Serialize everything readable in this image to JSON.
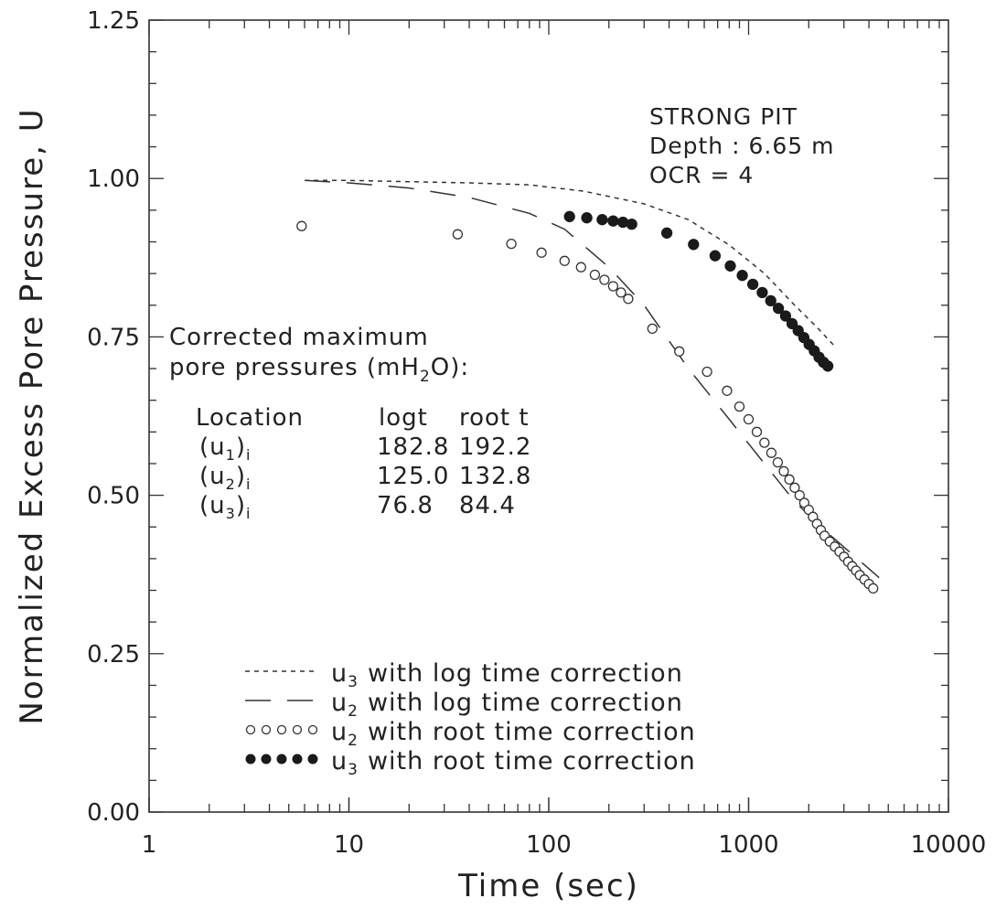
{
  "chart_data": {
    "type": "scatter",
    "title": "",
    "xlabel": "Time (sec)",
    "ylabel": "Normalized Excess Pore Pressure, U",
    "xscale": "log",
    "xlim": [
      1,
      10000
    ],
    "ylim": [
      0,
      1.25
    ],
    "x_ticks": [
      {
        "value": 1,
        "label": "1"
      },
      {
        "value": 10,
        "label": "10"
      },
      {
        "value": 100,
        "label": "100"
      },
      {
        "value": 1000,
        "label": "1000"
      },
      {
        "value": 10000,
        "label": "10000"
      }
    ],
    "y_ticks": [
      {
        "value": 0,
        "label": "0.00"
      },
      {
        "value": 0.25,
        "label": "0.25"
      },
      {
        "value": 0.5,
        "label": "0.50"
      },
      {
        "value": 0.75,
        "label": "0.75"
      },
      {
        "value": 1.0,
        "label": "1.00"
      },
      {
        "value": 1.25,
        "label": "1.25"
      }
    ],
    "annotations": {
      "site": "STRONG PIT",
      "depth": "Depth : 6.65 m",
      "ocr": "OCR = 4"
    },
    "corrected_table": {
      "title_line1": "Corrected maximum",
      "title_line2": "pore pressures (mH",
      "title_sub": "2",
      "title_end": "O):",
      "headers": [
        "Location",
        "logt",
        "root t"
      ],
      "rows": [
        {
          "base": "u",
          "sub": "1",
          "subscript_i": "i",
          "logt": "182.8",
          "root_t": "192.2"
        },
        {
          "base": "u",
          "sub": "2",
          "subscript_i": "i",
          "logt": "125.0",
          "root_t": "132.8"
        },
        {
          "base": "u",
          "sub": "3",
          "subscript_i": "i",
          "logt": "76.8",
          "root_t": "84.4"
        }
      ]
    },
    "legend_position": "bottom-center",
    "series": [
      {
        "name_base": "u",
        "name_sub": "3",
        "name_rest": "with log time correction",
        "style": "dotted-line",
        "color": "#333333",
        "x": [
          6,
          10,
          20,
          40,
          80,
          150,
          300,
          500,
          800,
          1200,
          1700,
          2200,
          2700
        ],
        "y": [
          0.997,
          0.997,
          0.995,
          0.993,
          0.99,
          0.98,
          0.96,
          0.935,
          0.895,
          0.85,
          0.8,
          0.765,
          0.735
        ]
      },
      {
        "name_base": "u",
        "name_sub": "2",
        "name_rest": "with log time correction",
        "style": "dashed-line",
        "color": "#333333",
        "x": [
          6,
          10,
          20,
          40,
          80,
          120,
          200,
          300,
          500,
          800,
          1200,
          1700,
          2500,
          3500,
          4500
        ],
        "y": [
          0.997,
          0.993,
          0.985,
          0.97,
          0.945,
          0.92,
          0.86,
          0.8,
          0.7,
          0.62,
          0.55,
          0.49,
          0.44,
          0.4,
          0.37
        ]
      },
      {
        "name_base": "u",
        "name_sub": "2",
        "name_rest": "with root time correction",
        "style": "open-circle",
        "color": "#333333",
        "x": [
          5.8,
          35,
          65,
          92,
          120,
          145,
          170,
          190,
          210,
          230,
          250,
          330,
          450,
          620,
          780,
          900,
          1000,
          1100,
          1200,
          1300,
          1400,
          1500,
          1600,
          1700,
          1800,
          1900,
          2000,
          2100,
          2200,
          2300,
          2400,
          2550,
          2700,
          2850,
          3000,
          3150,
          3300,
          3450,
          3600,
          3800,
          4000,
          4200
        ],
        "y": [
          0.925,
          0.912,
          0.897,
          0.883,
          0.87,
          0.86,
          0.848,
          0.84,
          0.83,
          0.82,
          0.81,
          0.763,
          0.727,
          0.695,
          0.665,
          0.64,
          0.62,
          0.6,
          0.583,
          0.567,
          0.552,
          0.538,
          0.525,
          0.512,
          0.5,
          0.488,
          0.477,
          0.466,
          0.455,
          0.445,
          0.436,
          0.427,
          0.419,
          0.411,
          0.403,
          0.395,
          0.388,
          0.381,
          0.374,
          0.367,
          0.36,
          0.353
        ]
      },
      {
        "name_base": "u",
        "name_sub": "3",
        "name_rest": "with root time correction",
        "style": "filled-circle",
        "color": "#1a1a1a",
        "x": [
          127,
          155,
          185,
          210,
          235,
          260,
          390,
          530,
          680,
          810,
          930,
          1050,
          1170,
          1290,
          1410,
          1530,
          1650,
          1770,
          1890,
          2010,
          2130,
          2250,
          2370,
          2490
        ],
        "y": [
          0.94,
          0.938,
          0.935,
          0.933,
          0.931,
          0.928,
          0.914,
          0.896,
          0.878,
          0.862,
          0.847,
          0.833,
          0.82,
          0.807,
          0.795,
          0.783,
          0.771,
          0.76,
          0.749,
          0.738,
          0.728,
          0.718,
          0.71,
          0.704
        ]
      }
    ]
  }
}
